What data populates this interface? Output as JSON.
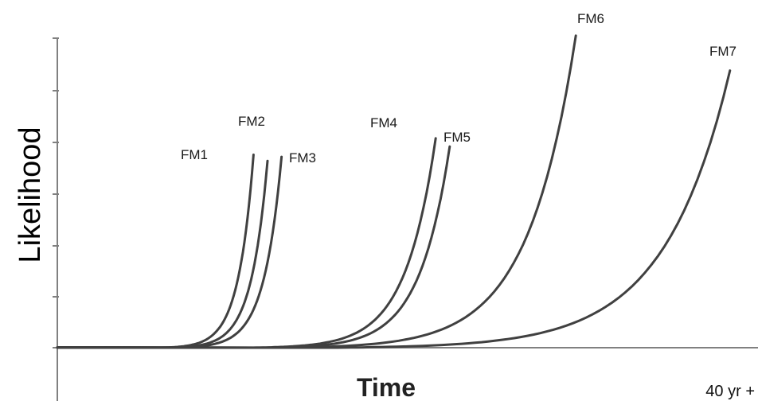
{
  "chart_data": {
    "type": "line",
    "xlabel": "Time",
    "ylabel": "Likelihood",
    "x_end_label": "40 yr +",
    "grid": false,
    "legend": "none",
    "line_color": "#404040",
    "axis_color": "#808080",
    "series": [
      {
        "name": "FM1",
        "onset": 0.15,
        "rise_end": 0.28,
        "peak": 0.94
      },
      {
        "name": "FM2",
        "onset": 0.16,
        "rise_end": 0.3,
        "peak": 0.91
      },
      {
        "name": "FM3",
        "onset": 0.17,
        "rise_end": 0.32,
        "peak": 0.93
      },
      {
        "name": "FM4",
        "onset": 0.28,
        "rise_end": 0.54,
        "peak": 1.02
      },
      {
        "name": "FM5",
        "onset": 0.3,
        "rise_end": 0.56,
        "peak": 0.98
      },
      {
        "name": "FM6",
        "onset": 0.33,
        "rise_end": 0.74,
        "peak": 1.52
      },
      {
        "name": "FM7",
        "onset": 0.4,
        "rise_end": 0.96,
        "peak": 1.35
      }
    ]
  }
}
